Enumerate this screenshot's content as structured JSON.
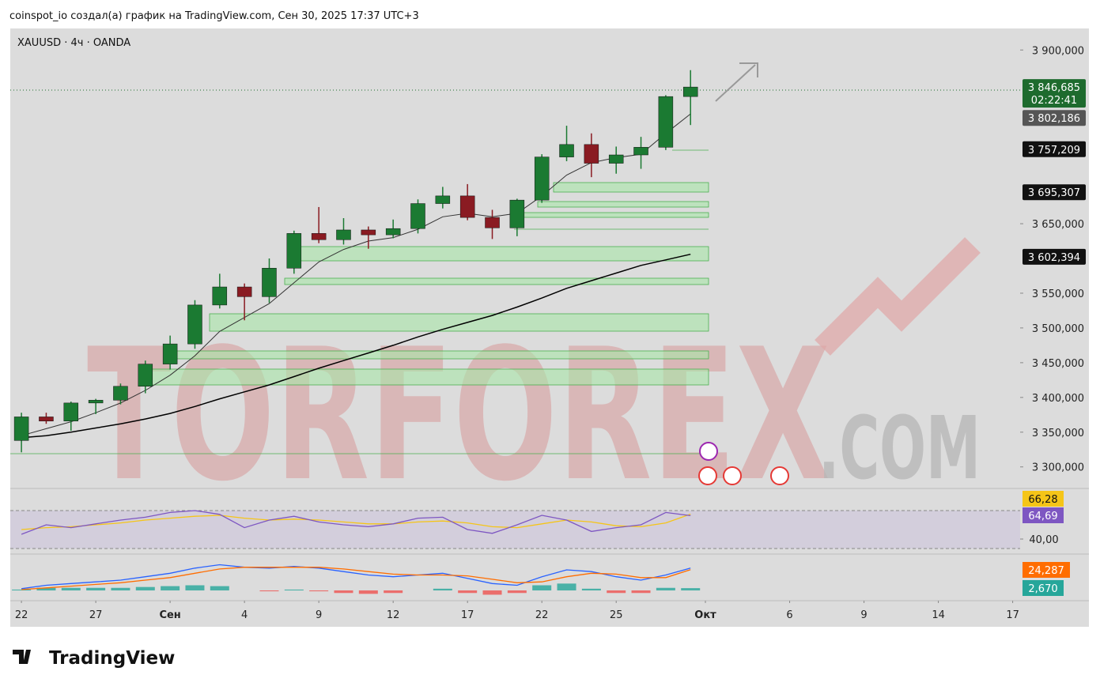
{
  "header": "coinspot_io создал(а) график на TradingView.com, Сен 30, 2025 17:37 UTC+3",
  "logo": "TradingView",
  "chart_data": {
    "type": "candlestick",
    "title": "XAUUSD · 4ч · OANDA",
    "watermark": "TORFOREX",
    "watermark_suffix": ".COM",
    "x": [
      0,
      1,
      2,
      3,
      4,
      5,
      6,
      7,
      8,
      9,
      10,
      11,
      12,
      13,
      14,
      15,
      16,
      17,
      18,
      19,
      20,
      21,
      22,
      23,
      24,
      25,
      26,
      27
    ],
    "xlim": [
      -0.45,
      40.3
    ],
    "xticks": [
      {
        "value": 0,
        "label": "22"
      },
      {
        "value": 3,
        "label": "27"
      },
      {
        "value": 6,
        "label": "Сен"
      },
      {
        "value": 9,
        "label": "4"
      },
      {
        "value": 12,
        "label": "9"
      },
      {
        "value": 15,
        "label": "12"
      },
      {
        "value": 18,
        "label": "17"
      },
      {
        "value": 21,
        "label": "22"
      },
      {
        "value": 24,
        "label": "25"
      },
      {
        "value": 27.6,
        "label": "Окт"
      },
      {
        "value": 31,
        "label": "6"
      },
      {
        "value": 34,
        "label": "9"
      },
      {
        "value": 37,
        "label": "14"
      },
      {
        "value": 40,
        "label": "17"
      }
    ],
    "open": [
      3338,
      3372,
      3366,
      3392,
      3396,
      3416,
      3448,
      3477,
      3533,
      3559,
      3545,
      3586,
      3636,
      3627,
      3641,
      3634,
      3643,
      3679,
      3690,
      3659,
      3644,
      3684,
      3746,
      3764,
      3737,
      3749,
      3760,
      3833
    ],
    "high": [
      3378,
      3378,
      3394,
      3398,
      3420,
      3453,
      3489,
      3540,
      3578,
      3564,
      3600,
      3640,
      3674,
      3658,
      3646,
      3656,
      3685,
      3703,
      3707,
      3670,
      3686,
      3750,
      3791,
      3780,
      3761,
      3775,
      3835,
      3871
    ],
    "low": [
      3321,
      3362,
      3352,
      3376,
      3390,
      3406,
      3440,
      3470,
      3528,
      3511,
      3536,
      3578,
      3622,
      3620,
      3614,
      3629,
      3636,
      3672,
      3655,
      3628,
      3632,
      3680,
      3740,
      3717,
      3722,
      3729,
      3756,
      3792
    ],
    "close": [
      3372,
      3366,
      3392,
      3396,
      3416,
      3448,
      3477,
      3533,
      3559,
      3545,
      3586,
      3636,
      3627,
      3641,
      3634,
      3643,
      3679,
      3690,
      3659,
      3644,
      3684,
      3746,
      3764,
      3737,
      3749,
      3760,
      3833,
      3846.685
    ],
    "up_color": "#1b7a32",
    "down_color": "#8a1b22",
    "ylim": [
      3269,
      3931
    ],
    "yticks": [
      {
        "value": 3900,
        "label": "3 900,000"
      },
      {
        "value": 3650,
        "label": "3 650,000"
      },
      {
        "value": 3550,
        "label": "3 550,000"
      },
      {
        "value": 3500,
        "label": "3 500,000"
      },
      {
        "value": 3450,
        "label": "3 450,000"
      },
      {
        "value": 3400,
        "label": "3 400,000"
      },
      {
        "value": 3350,
        "label": "3 350,000"
      },
      {
        "value": 3300,
        "label": "3 300,000"
      }
    ],
    "series": [
      {
        "name": "MA fast",
        "color": "#333333",
        "values": [
          3345,
          3355,
          3365,
          3378,
          3392,
          3410,
          3432,
          3460,
          3495,
          3515,
          3535,
          3565,
          3595,
          3613,
          3625,
          3630,
          3642,
          3660,
          3665,
          3660,
          3665,
          3690,
          3720,
          3738,
          3745,
          3750,
          3780,
          3808
        ]
      },
      {
        "name": "MA slow",
        "color": "#000000",
        "values": [
          3342,
          3345,
          3350,
          3356,
          3362,
          3369,
          3377,
          3387,
          3398,
          3408,
          3418,
          3430,
          3442,
          3453,
          3464,
          3475,
          3487,
          3498,
          3508,
          3518,
          3530,
          3543,
          3557,
          3568,
          3579,
          3590,
          3598,
          3606
        ]
      }
    ],
    "price_labels": [
      {
        "value": 3846.685,
        "label": "3 846,685",
        "color": "#1e6b2e",
        "countdown": "02:22:41"
      },
      {
        "value": 3802.186,
        "label": "3 802,186",
        "color": "#555555"
      },
      {
        "value": 3757.209,
        "label": "3 757,209",
        "color": "#111111"
      },
      {
        "value": 3695.307,
        "label": "3 695,307",
        "color": "#111111"
      },
      {
        "value": 3602.394,
        "label": "3 602,394",
        "color": "#111111"
      }
    ],
    "rsi": {
      "ylim": [
        25,
        91.7
      ],
      "bands": [
        70,
        30
      ],
      "tick": {
        "value": 40,
        "label": "40,00"
      },
      "values": [
        45,
        55,
        52,
        56,
        60,
        63,
        68,
        70,
        66,
        52,
        60,
        64,
        58,
        55,
        53,
        56,
        62,
        63,
        50,
        46,
        55,
        65,
        60,
        48,
        52,
        55,
        68,
        64.69
      ],
      "value_label": "64,69",
      "color": "#7e57c2",
      "ma": [
        50,
        52,
        53,
        55,
        57,
        60,
        62,
        64,
        65,
        62,
        60,
        61,
        60,
        58,
        56,
        56,
        58,
        59,
        57,
        53,
        52,
        56,
        60,
        58,
        54,
        53,
        57,
        66.28
      ],
      "ma_label": "66,28",
      "ma_color": "#f5c518"
    },
    "macd": {
      "ylim": [
        -4.6,
        40.6
      ],
      "values": [
        2,
        6,
        8,
        10,
        12,
        16,
        20,
        26,
        30,
        27,
        26,
        28,
        26,
        22,
        18,
        16,
        18,
        20,
        14,
        8,
        6,
        16,
        24,
        22,
        16,
        12,
        18,
        26
      ],
      "color": "#2962ff",
      "signal": [
        1,
        3,
        5,
        7,
        9,
        12,
        15,
        20,
        25,
        27,
        27,
        27,
        27,
        25,
        22,
        19,
        18,
        18,
        17,
        13,
        9,
        10,
        16,
        20,
        19,
        15,
        15,
        24.287
      ],
      "signal_label": "24,287",
      "signal_color": "#ff6d00",
      "hist": [
        1,
        3,
        3,
        3,
        3,
        4,
        5,
        6,
        5,
        0,
        -1,
        1,
        -1,
        -3,
        -4,
        -3,
        0,
        2,
        -3,
        -5,
        -3,
        6,
        8,
        2,
        -3,
        -3,
        3,
        2.67
      ],
      "hist_label": "2,670",
      "hist_up": "#26a69a",
      "hist_down": "#ef5350"
    }
  }
}
